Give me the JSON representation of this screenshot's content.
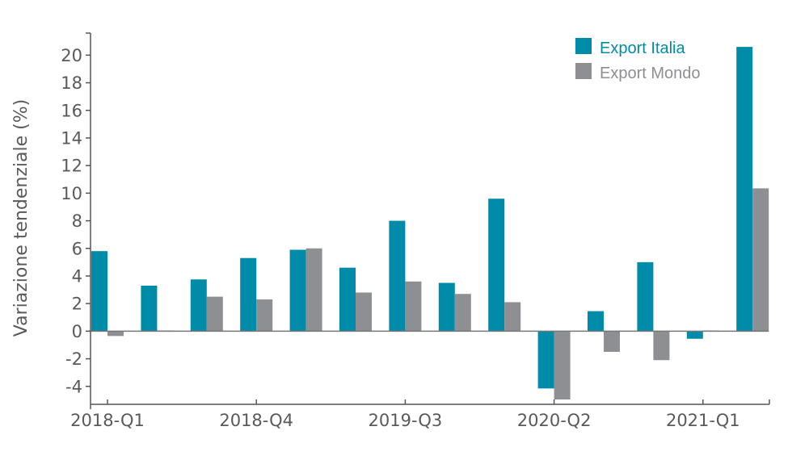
{
  "chart_data": {
    "type": "bar",
    "title": "",
    "xlabel": "",
    "ylabel": "Variazione tendenziale (%)",
    "ylim": [
      -5.3,
      21.6
    ],
    "yticks": [
      -4,
      -2,
      0,
      2,
      4,
      6,
      8,
      10,
      12,
      14,
      16,
      18,
      20
    ],
    "grid": false,
    "legend_position": "top-right",
    "categories": [
      "2018-Q1",
      "2018-Q2",
      "2018-Q3",
      "2018-Q4",
      "2019-Q1",
      "2019-Q2",
      "2019-Q3",
      "2019-Q4",
      "2020-Q1",
      "2020-Q2",
      "2020-Q3",
      "2020-Q4",
      "2021-Q1",
      "2021-Q2"
    ],
    "xtick_labels": [
      "2018-Q1",
      "2018-Q4",
      "2019-Q3",
      "2020-Q2",
      "2021-Q1"
    ],
    "series": [
      {
        "name": "Export Italia",
        "color": "#008ba8",
        "values": [
          5.8,
          3.3,
          3.75,
          5.3,
          5.9,
          4.6,
          8.0,
          3.5,
          9.6,
          -4.15,
          1.45,
          5.0,
          -0.55,
          20.6
        ]
      },
      {
        "name": "Export Mondo",
        "color": "#8e8f93",
        "values": [
          -0.35,
          0.05,
          2.5,
          2.3,
          6.0,
          2.8,
          3.6,
          2.7,
          2.1,
          -4.95,
          -1.5,
          -2.1,
          0.05,
          10.35
        ]
      }
    ]
  },
  "colors": {
    "axis": "#555555",
    "text": "#5a5a5a",
    "zero_line": "#777777"
  }
}
